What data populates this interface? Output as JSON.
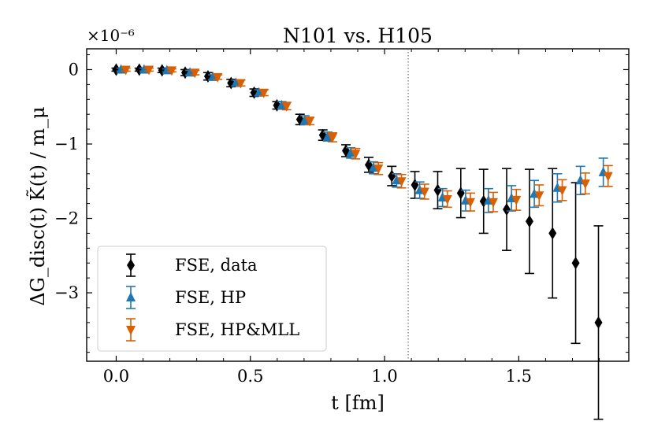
{
  "chart_data": {
    "type": "scatter",
    "title": "N101 vs. H105",
    "xlabel": "t [fm]",
    "ylabel": "ΔG_disc(t) K̃(t) / m_μ",
    "y_scale_factor": "×10⁻⁶",
    "xlim": [
      -0.11,
      1.91
    ],
    "ylim": [
      -3.92,
      0.28
    ],
    "xticks": [
      0.0,
      0.5,
      1.0,
      1.5
    ],
    "xtick_labels": [
      "0.0",
      "0.5",
      "1.0",
      "1.5"
    ],
    "yticks": [
      0,
      -1,
      -2,
      -3
    ],
    "ytick_labels": [
      "0",
      "−1",
      "−2",
      "−3"
    ],
    "vline_x": 1.088,
    "legend_position": "lower-left",
    "series": [
      {
        "name": "FSE, data",
        "color": "#000000",
        "marker": "diamond",
        "points": [
          {
            "x": 0.0,
            "y": 0.0,
            "err": 0.02
          },
          {
            "x": 0.086,
            "y": 0.0,
            "err": 0.02
          },
          {
            "x": 0.171,
            "y": -0.01,
            "err": 0.03
          },
          {
            "x": 0.257,
            "y": -0.04,
            "err": 0.04
          },
          {
            "x": 0.342,
            "y": -0.09,
            "err": 0.05
          },
          {
            "x": 0.428,
            "y": -0.18,
            "err": 0.05
          },
          {
            "x": 0.514,
            "y": -0.31,
            "err": 0.05
          },
          {
            "x": 0.599,
            "y": -0.48,
            "err": 0.05
          },
          {
            "x": 0.685,
            "y": -0.67,
            "err": 0.07
          },
          {
            "x": 0.77,
            "y": -0.88,
            "err": 0.07
          },
          {
            "x": 0.856,
            "y": -1.09,
            "err": 0.08
          },
          {
            "x": 0.941,
            "y": -1.28,
            "err": 0.1
          },
          {
            "x": 1.027,
            "y": -1.43,
            "err": 0.13
          },
          {
            "x": 1.113,
            "y": -1.55,
            "err": 0.18
          },
          {
            "x": 1.198,
            "y": -1.62,
            "err": 0.25
          },
          {
            "x": 1.284,
            "y": -1.66,
            "err": 0.33
          },
          {
            "x": 1.369,
            "y": -1.77,
            "err": 0.43
          },
          {
            "x": 1.455,
            "y": -1.88,
            "err": 0.55
          },
          {
            "x": 1.54,
            "y": -2.04,
            "err": 0.7
          },
          {
            "x": 1.626,
            "y": -2.2,
            "err": 0.87
          },
          {
            "x": 1.712,
            "y": -2.6,
            "err": 1.08
          },
          {
            "x": 1.797,
            "y": -3.4,
            "err": 1.3
          }
        ]
      },
      {
        "name": "FSE, HP",
        "color": "#1f77b4",
        "marker": "triangle-up",
        "points": [
          {
            "x": 0.0,
            "y": 0.0,
            "err": 0.02
          },
          {
            "x": 0.086,
            "y": 0.0,
            "err": 0.02
          },
          {
            "x": 0.171,
            "y": -0.01,
            "err": 0.02
          },
          {
            "x": 0.257,
            "y": -0.04,
            "err": 0.03
          },
          {
            "x": 0.342,
            "y": -0.1,
            "err": 0.03
          },
          {
            "x": 0.428,
            "y": -0.18,
            "err": 0.04
          },
          {
            "x": 0.514,
            "y": -0.31,
            "err": 0.04
          },
          {
            "x": 0.599,
            "y": -0.48,
            "err": 0.05
          },
          {
            "x": 0.685,
            "y": -0.68,
            "err": 0.06
          },
          {
            "x": 0.77,
            "y": -0.9,
            "err": 0.06
          },
          {
            "x": 0.856,
            "y": -1.12,
            "err": 0.07
          },
          {
            "x": 0.941,
            "y": -1.32,
            "err": 0.08
          },
          {
            "x": 1.027,
            "y": -1.49,
            "err": 0.09
          },
          {
            "x": 1.113,
            "y": -1.62,
            "err": 0.11
          },
          {
            "x": 1.198,
            "y": -1.72,
            "err": 0.12
          },
          {
            "x": 1.284,
            "y": -1.76,
            "err": 0.14
          },
          {
            "x": 1.369,
            "y": -1.76,
            "err": 0.16
          },
          {
            "x": 1.455,
            "y": -1.73,
            "err": 0.17
          },
          {
            "x": 1.54,
            "y": -1.67,
            "err": 0.18
          },
          {
            "x": 1.626,
            "y": -1.59,
            "err": 0.19
          },
          {
            "x": 1.712,
            "y": -1.49,
            "err": 0.19
          },
          {
            "x": 1.797,
            "y": -1.38,
            "err": 0.19
          }
        ]
      },
      {
        "name": "FSE, HP&MLL",
        "color": "#d95f02",
        "marker": "triangle-down",
        "points": [
          {
            "x": 0.0,
            "y": 0.0,
            "err": 0.02
          },
          {
            "x": 0.086,
            "y": 0.0,
            "err": 0.02
          },
          {
            "x": 0.171,
            "y": -0.01,
            "err": 0.02
          },
          {
            "x": 0.257,
            "y": -0.04,
            "err": 0.03
          },
          {
            "x": 0.342,
            "y": -0.1,
            "err": 0.03
          },
          {
            "x": 0.428,
            "y": -0.18,
            "err": 0.04
          },
          {
            "x": 0.514,
            "y": -0.31,
            "err": 0.04
          },
          {
            "x": 0.599,
            "y": -0.49,
            "err": 0.05
          },
          {
            "x": 0.685,
            "y": -0.69,
            "err": 0.05
          },
          {
            "x": 0.77,
            "y": -0.91,
            "err": 0.06
          },
          {
            "x": 0.856,
            "y": -1.13,
            "err": 0.07
          },
          {
            "x": 0.941,
            "y": -1.33,
            "err": 0.08
          },
          {
            "x": 1.027,
            "y": -1.5,
            "err": 0.09
          },
          {
            "x": 1.113,
            "y": -1.64,
            "err": 0.1
          },
          {
            "x": 1.198,
            "y": -1.74,
            "err": 0.11
          },
          {
            "x": 1.284,
            "y": -1.78,
            "err": 0.12
          },
          {
            "x": 1.369,
            "y": -1.78,
            "err": 0.13
          },
          {
            "x": 1.455,
            "y": -1.75,
            "err": 0.14
          },
          {
            "x": 1.54,
            "y": -1.69,
            "err": 0.14
          },
          {
            "x": 1.626,
            "y": -1.62,
            "err": 0.14
          },
          {
            "x": 1.712,
            "y": -1.53,
            "err": 0.14
          },
          {
            "x": 1.797,
            "y": -1.43,
            "err": 0.14
          }
        ]
      }
    ]
  }
}
